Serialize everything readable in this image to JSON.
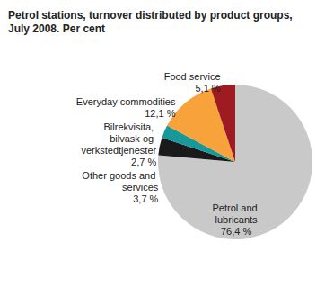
{
  "chart_data": {
    "type": "pie",
    "title": "Petrol stations, turnover distributed by product groups, July 2008. Per cent",
    "categories": [
      "Petrol and lubricants",
      "Other goods and services",
      "Bilrekvisita, bilvask og verkstedtjenester",
      "Everyday commodities",
      "Food service"
    ],
    "values": [
      76.4,
      3.7,
      2.7,
      12.1,
      5.1
    ],
    "value_labels": [
      "76,4 %",
      "3,7 %",
      "2,7 %",
      "12,1 %",
      "5,1 %"
    ],
    "colors": [
      "#c9c9c9",
      "#1a1a1a",
      "#17999a",
      "#f8a23c",
      "#9e1b22"
    ],
    "data_labels": true
  }
}
